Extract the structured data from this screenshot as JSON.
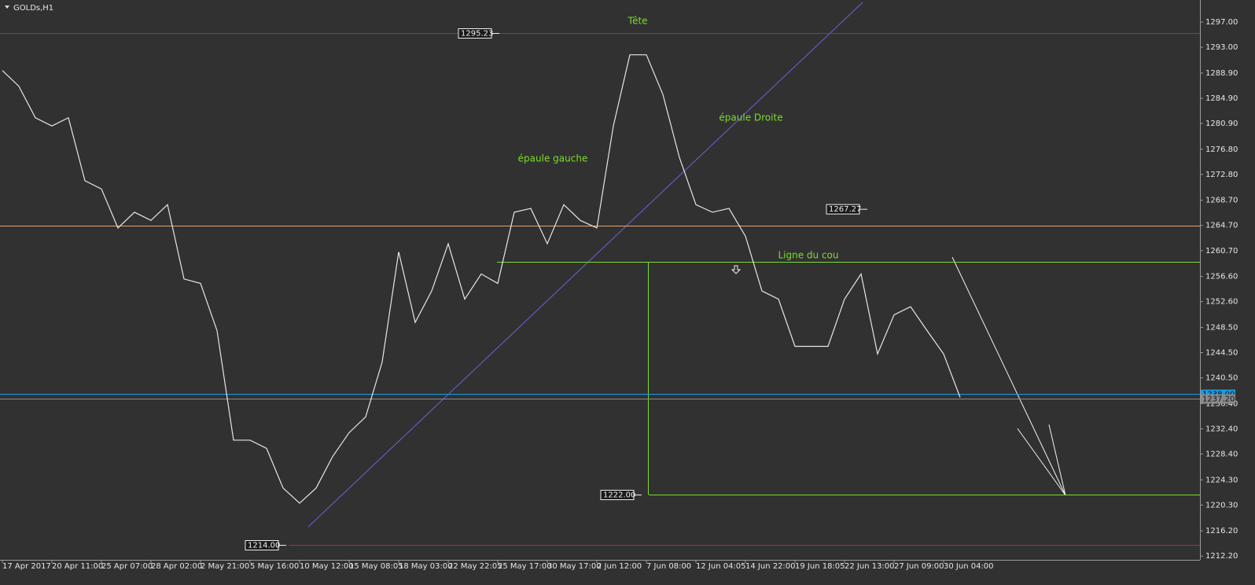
{
  "chart_data": {
    "type": "line",
    "title": "GOLDs,H1",
    "color": "#e6e6e6",
    "categories": [
      "17 Apr 2017",
      null,
      null,
      "20 Apr 11:00",
      null,
      null,
      "25 Apr 07:00",
      null,
      null,
      "28 Apr 02:00",
      null,
      null,
      "2 May 21:00",
      null,
      null,
      "5 May 16:00",
      null,
      null,
      "10 May 12:00",
      null,
      null,
      "15 May 08:05",
      null,
      null,
      "18 May 03:00",
      null,
      null,
      "22 May 22:05",
      null,
      null,
      "25 May 17:00",
      null,
      null,
      "30 May 17:00",
      null,
      null,
      "2 Jun 12:00",
      null,
      null,
      "7 Jun 08:00",
      null,
      null,
      "12 Jun 04:05",
      null,
      null,
      "14 Jun 22:00",
      null,
      null,
      "19 Jun 18:05",
      null,
      null,
      "22 Jun 13:00",
      null,
      null,
      "27 Jun 09:00",
      null,
      null,
      "30 Jun 04:00",
      null
    ],
    "values": [
      1289.3,
      1286.8,
      1281.8,
      1280.5,
      1281.8,
      1271.8,
      1270.5,
      1264.3,
      1266.8,
      1265.5,
      1268,
      1256.2,
      1255.5,
      1248,
      1230.6,
      1230.6,
      1229.3,
      1223,
      1220.6,
      1223,
      1228,
      1231.8,
      1234.3,
      1243,
      1260.5,
      1249.3,
      1254.3,
      1261.8,
      1253,
      1257,
      1255.5,
      1266.8,
      1267.4,
      1261.8,
      1268,
      1265.5,
      1264.3,
      1280.5,
      1291.8,
      1291.8,
      1285.5,
      1275.5,
      1268,
      1266.8,
      1267.4,
      1263,
      1254.3,
      1253,
      1245.5,
      1245.5,
      1245.5,
      1253,
      1257,
      1244.3,
      1250.5,
      1251.8,
      1248,
      1244.3,
      1237.4
    ],
    "ylim": [
      1211.6,
      1300.5
    ],
    "yticks": [
      {
        "value": 1297,
        "label": "1297.00"
      },
      {
        "value": 1293,
        "label": "1293.00"
      },
      {
        "value": 1288.9,
        "label": "1288.90"
      },
      {
        "value": 1284.9,
        "label": "1284.90"
      },
      {
        "value": 1280.9,
        "label": "1280.90"
      },
      {
        "value": 1276.8,
        "label": "1276.80"
      },
      {
        "value": 1272.8,
        "label": "1272.80"
      },
      {
        "value": 1268.7,
        "label": "1268.70"
      },
      {
        "value": 1264.7,
        "label": "1264.70"
      },
      {
        "value": 1260.7,
        "label": "1260.70"
      },
      {
        "value": 1256.6,
        "label": "1256.60"
      },
      {
        "value": 1252.6,
        "label": "1252.60"
      },
      {
        "value": 1248.5,
        "label": "1248.50"
      },
      {
        "value": 1244.5,
        "label": "1244.50"
      },
      {
        "value": 1240.5,
        "label": "1240.50"
      },
      {
        "value": 1236.4,
        "label": "1236.40"
      },
      {
        "value": 1232.4,
        "label": "1232.40"
      },
      {
        "value": 1228.4,
        "label": "1228.40"
      },
      {
        "value": 1224.3,
        "label": "1224.30"
      },
      {
        "value": 1220.3,
        "label": "1220.30"
      },
      {
        "value": 1216.2,
        "label": "1216.20"
      },
      {
        "value": 1212.2,
        "label": "1212.20"
      }
    ],
    "levels": {
      "values": [
        1295.23,
        1264.65,
        1258.9,
        1238,
        1237.2,
        1222,
        1214
      ],
      "value_labels": [
        "1295.23",
        null,
        null,
        "1238.00",
        "1237.20",
        "1222.00",
        "1214.00"
      ],
      "colors": [
        "#d81e1e",
        "#e8a46a",
        "#7cdc2c",
        "#1e9be0",
        "#8a8a8a",
        "#7cdc2c",
        "#d81e1e"
      ]
    },
    "price_label": 1267.27,
    "annotations": [
      "Tête",
      "épaule gauche",
      "épaule Droite",
      "Ligne du cou"
    ],
    "annotation_color": "#7cdc2c"
  }
}
